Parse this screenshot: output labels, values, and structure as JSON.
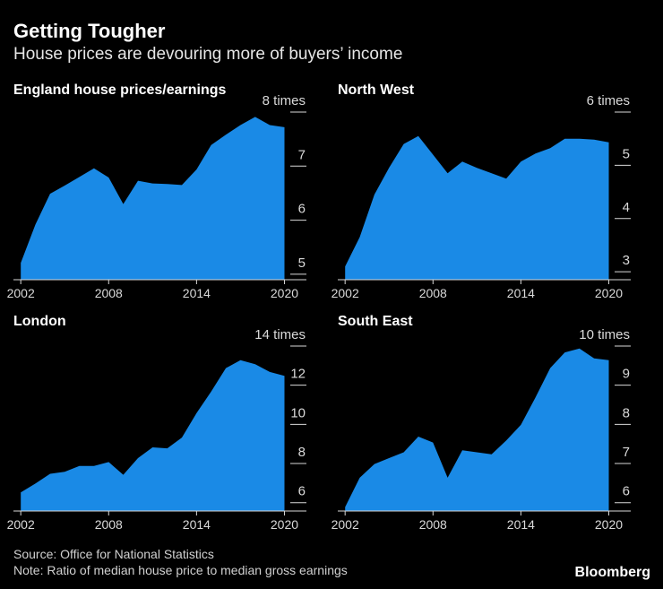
{
  "header": {
    "title": "Getting Tougher",
    "subtitle": "House prices are devouring more of buyers’ income"
  },
  "footer": {
    "source": "Source: Office for National Statistics",
    "note": "Note: Ratio of median house price to median gross earnings",
    "brand": "Bloomberg"
  },
  "colors": {
    "fill": "#1a8ae6",
    "axis": "#d9d9d9",
    "text": "#d9d9d9",
    "background": "#000000"
  },
  "chart_data": [
    {
      "type": "area",
      "title": "England house prices/earnings",
      "unit_label": "times",
      "x": [
        2002,
        2003,
        2004,
        2005,
        2006,
        2007,
        2008,
        2009,
        2010,
        2011,
        2012,
        2013,
        2014,
        2015,
        2016,
        2017,
        2018,
        2019,
        2020
      ],
      "values": [
        5.11,
        5.82,
        6.39,
        6.54,
        6.7,
        6.86,
        6.69,
        6.2,
        6.63,
        6.58,
        6.57,
        6.55,
        6.84,
        7.29,
        7.48,
        7.66,
        7.81,
        7.66,
        7.62
      ],
      "xlim": [
        2001.5,
        2021.5
      ],
      "ylim": [
        4.8,
        7.95
      ],
      "xticks": [
        2002,
        2008,
        2014,
        2020
      ],
      "yticks": [
        5,
        6,
        7,
        8
      ]
    },
    {
      "type": "area",
      "title": "North West",
      "unit_label": "times",
      "x": [
        2002,
        2003,
        2004,
        2005,
        2006,
        2007,
        2008,
        2009,
        2010,
        2011,
        2012,
        2013,
        2014,
        2015,
        2016,
        2017,
        2018,
        2019,
        2020
      ],
      "values": [
        3.0,
        3.55,
        4.35,
        4.85,
        5.3,
        5.45,
        5.1,
        4.75,
        4.97,
        4.85,
        4.75,
        4.65,
        4.97,
        5.12,
        5.22,
        5.4,
        5.4,
        5.38,
        5.33
      ],
      "xlim": [
        2001.5,
        2021.5
      ],
      "ylim": [
        2.75,
        5.95
      ],
      "xticks": [
        2002,
        2008,
        2014,
        2020
      ],
      "yticks": [
        3,
        4,
        5,
        6
      ]
    },
    {
      "type": "area",
      "title": "London",
      "unit_label": "times",
      "x": [
        2002,
        2003,
        2004,
        2005,
        2006,
        2007,
        2008,
        2009,
        2010,
        2011,
        2012,
        2013,
        2014,
        2015,
        2016,
        2017,
        2018,
        2019,
        2020
      ],
      "values": [
        6.25,
        6.7,
        7.2,
        7.3,
        7.6,
        7.6,
        7.8,
        7.15,
        8.0,
        8.55,
        8.5,
        9.05,
        10.3,
        11.4,
        12.6,
        13.0,
        12.8,
        12.4,
        12.2
      ],
      "xlim": [
        2001.5,
        2021.5
      ],
      "ylim": [
        5.3,
        14.0
      ],
      "xticks": [
        2002,
        2008,
        2014,
        2020
      ],
      "yticks": [
        6,
        8,
        10,
        12,
        14
      ]
    },
    {
      "type": "area",
      "title": "South East",
      "unit_label": "times",
      "x": [
        2002,
        2003,
        2004,
        2005,
        2006,
        2007,
        2008,
        2009,
        2010,
        2011,
        2012,
        2013,
        2014,
        2015,
        2016,
        2017,
        2018,
        2019,
        2020
      ],
      "values": [
        5.75,
        6.5,
        6.85,
        7.0,
        7.15,
        7.55,
        7.4,
        6.5,
        7.2,
        7.15,
        7.1,
        7.45,
        7.85,
        8.55,
        9.3,
        9.7,
        9.8,
        9.55,
        9.5
      ],
      "xlim": [
        2001.5,
        2021.5
      ],
      "ylim": [
        5.65,
        10.0
      ],
      "xticks": [
        2002,
        2008,
        2014,
        2020
      ],
      "yticks": [
        6,
        7,
        8,
        9,
        10
      ]
    }
  ]
}
